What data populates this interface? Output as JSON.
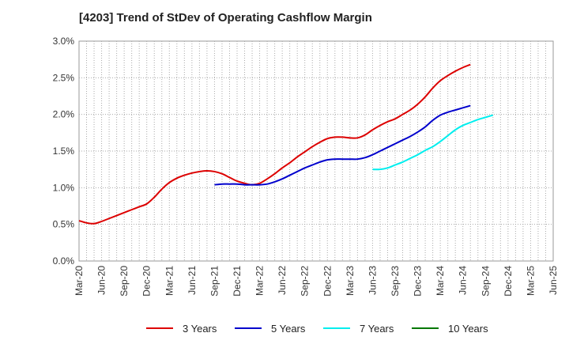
{
  "chart_data": {
    "type": "line",
    "title": "[4203]  Trend of StDev of Operating Cashflow Margin",
    "xlabel": "",
    "ylabel": "",
    "ylim": [
      0,
      3.0
    ],
    "y_ticks": [
      "0.0%",
      "0.5%",
      "1.0%",
      "1.5%",
      "2.0%",
      "2.5%",
      "3.0%"
    ],
    "x_ticks": [
      "Mar-20",
      "Jun-20",
      "Sep-20",
      "Dec-20",
      "Mar-21",
      "Jun-21",
      "Sep-21",
      "Dec-21",
      "Mar-22",
      "Jun-22",
      "Sep-22",
      "Dec-22",
      "Mar-23",
      "Jun-23",
      "Sep-23",
      "Dec-23",
      "Mar-24",
      "Jun-24",
      "Sep-24",
      "Dec-24",
      "Mar-25",
      "Jun-25"
    ],
    "grid": true,
    "legend_position": "bottom",
    "series": [
      {
        "name": "3 Years",
        "color": "#dd0000",
        "start_index": 0,
        "values": [
          0.55,
          0.52,
          0.51,
          0.54,
          0.58,
          0.62,
          0.66,
          0.7,
          0.74,
          0.78,
          0.87,
          0.98,
          1.07,
          1.13,
          1.17,
          1.2,
          1.22,
          1.23,
          1.22,
          1.19,
          1.14,
          1.09,
          1.06,
          1.04,
          1.06,
          1.12,
          1.19,
          1.27,
          1.34,
          1.42,
          1.49,
          1.56,
          1.62,
          1.67,
          1.69,
          1.69,
          1.68,
          1.68,
          1.72,
          1.79,
          1.85,
          1.9,
          1.94,
          2.0,
          2.06,
          2.14,
          2.24,
          2.36,
          2.46,
          2.53,
          2.59,
          2.64,
          2.68
        ]
      },
      {
        "name": "5 Years",
        "color": "#0000cc",
        "start_index": 18,
        "values": [
          1.04,
          1.05,
          1.05,
          1.05,
          1.04,
          1.04,
          1.04,
          1.05,
          1.08,
          1.12,
          1.17,
          1.22,
          1.27,
          1.31,
          1.35,
          1.38,
          1.39,
          1.39,
          1.39,
          1.39,
          1.41,
          1.45,
          1.5,
          1.55,
          1.6,
          1.65,
          1.7,
          1.76,
          1.83,
          1.92,
          1.99,
          2.03,
          2.06,
          2.09,
          2.12
        ]
      },
      {
        "name": "7 Years",
        "color": "#00eeee",
        "start_index": 39,
        "values": [
          1.25,
          1.25,
          1.27,
          1.31,
          1.35,
          1.4,
          1.45,
          1.51,
          1.56,
          1.63,
          1.71,
          1.79,
          1.85,
          1.89,
          1.93,
          1.96,
          1.99
        ]
      },
      {
        "name": "10 Years",
        "color": "#007700",
        "start_index": 0,
        "values": []
      }
    ]
  }
}
